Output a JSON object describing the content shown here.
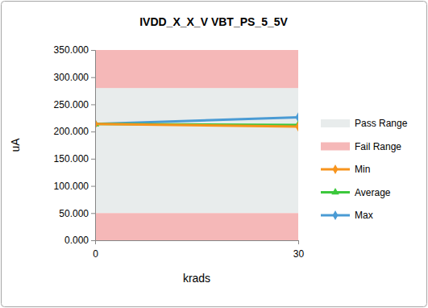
{
  "chart_data": {
    "type": "line",
    "title": "IVDD_X_X_V VBT_PS_5_5V",
    "x_label": "krads",
    "y_label": "uA",
    "x": [
      0,
      30
    ],
    "xlim": [
      0,
      30
    ],
    "xticks": [
      0,
      30
    ],
    "ylim": [
      0,
      350
    ],
    "yticks": [
      {
        "value": 0,
        "label": "0.000"
      },
      {
        "value": 50,
        "label": "50.000"
      },
      {
        "value": 100,
        "label": "100.000"
      },
      {
        "value": 150,
        "label": "150.000"
      },
      {
        "value": 200,
        "label": "200.000"
      },
      {
        "value": 250,
        "label": "250.000"
      },
      {
        "value": 300,
        "label": "300.000"
      },
      {
        "value": 350,
        "label": "350.000"
      }
    ],
    "grid": false,
    "legend": "right",
    "ranges": [
      {
        "name": "Pass Range",
        "color": "#e8ecec",
        "bands": [
          [
            50,
            280
          ]
        ]
      },
      {
        "name": "Fail Range",
        "color": "#f5b8b8",
        "bands": [
          [
            0,
            50
          ],
          [
            280,
            350
          ]
        ]
      }
    ],
    "series": [
      {
        "name": "Min",
        "color": "#f7941d",
        "marker": "diamond",
        "values": [
          214,
          209
        ]
      },
      {
        "name": "Average",
        "color": "#3cc83c",
        "marker": "triangle",
        "values": [
          214,
          212
        ]
      },
      {
        "name": "Max",
        "color": "#4a9bd4",
        "marker": "diamond",
        "values": [
          214,
          226
        ]
      }
    ]
  }
}
